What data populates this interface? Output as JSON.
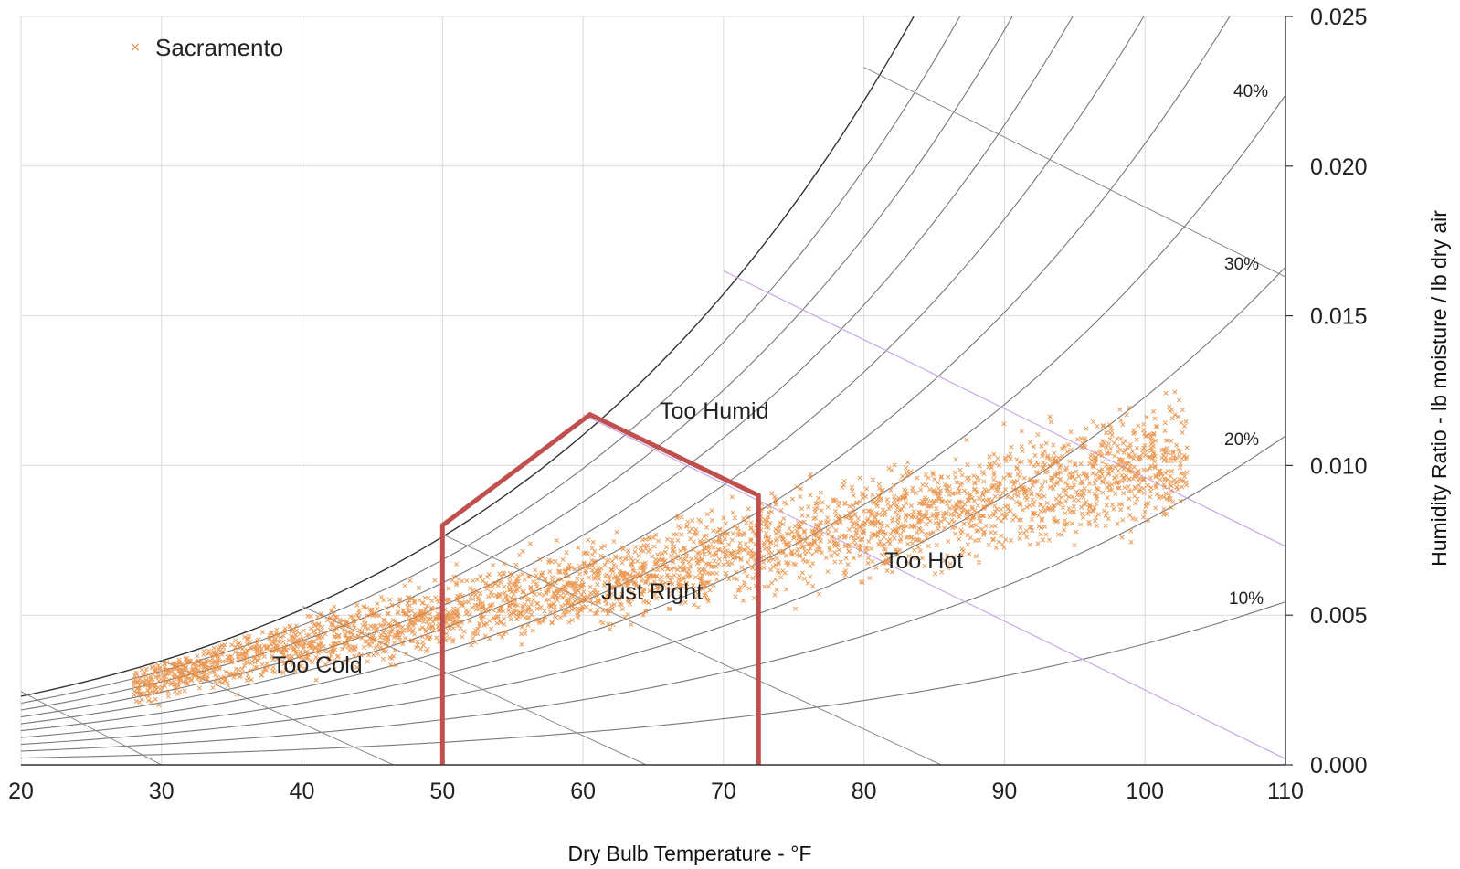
{
  "chart_data": {
    "type": "scatter",
    "title": "",
    "xlabel": "Dry Bulb Temperature - °F",
    "ylabel": "Humidity Ratio - lb moisture / lb dry air",
    "xlim": [
      20,
      110
    ],
    "ylim": [
      0,
      0.025
    ],
    "x_ticks": [
      "20",
      "30",
      "40",
      "50",
      "60",
      "70",
      "80",
      "90",
      "100",
      "110"
    ],
    "y_ticks": [
      "0.000",
      "0.005",
      "0.010",
      "0.015",
      "0.020",
      "0.025"
    ],
    "grid": true,
    "y_axis_side": "right",
    "legend": {
      "position": "top-left",
      "entries": [
        "Sacramento"
      ]
    },
    "marker_color": "#e8893a",
    "boundary_color": "#c0504d",
    "series": [
      {
        "name": "Sacramento",
        "marker": "x",
        "point_count": 4000,
        "trend": "dense band from about 28°F / 0.003 rising to about 100°F / 0.010, widest spread between 50°F and 95°F"
      }
    ],
    "rh_curves": [
      10,
      20,
      30,
      40,
      50,
      60,
      70,
      80,
      90,
      100
    ],
    "rh_labels": [
      "10%",
      "20%",
      "30%",
      "40%"
    ],
    "comfort_boundary": [
      [
        50,
        0
      ],
      [
        50,
        0.008
      ],
      [
        60.5,
        0.0117
      ],
      [
        72.5,
        0.009
      ],
      [
        72.5,
        0
      ]
    ],
    "regions": [
      "Too Humid",
      "Just Right",
      "Too Cold",
      "Too Hot"
    ]
  }
}
